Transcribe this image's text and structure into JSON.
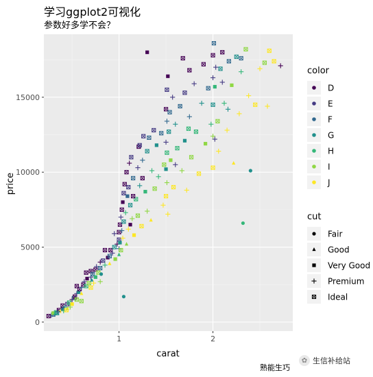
{
  "chart_data": {
    "type": "scatter",
    "title": "学习ggplot2可视化",
    "subtitle": "参数好多学不会？",
    "caption": "熟能生巧",
    "xlabel": "carat",
    "ylabel": "price",
    "xlim": [
      0.2,
      2.85
    ],
    "ylim": [
      -600,
      19200
    ],
    "xticks": [
      1,
      2
    ],
    "yticks": [
      0,
      5000,
      10000,
      15000
    ],
    "ytick_labels": [
      "0",
      "5000",
      "10000",
      "15000"
    ],
    "grid": true,
    "legend_position": "right",
    "legends": {
      "color": {
        "title": "color",
        "entries": [
          "D",
          "E",
          "F",
          "G",
          "H",
          "I",
          "J"
        ],
        "colors": [
          "#440154",
          "#443a83",
          "#31688e",
          "#21908c",
          "#35b779",
          "#8fd744",
          "#fde725"
        ]
      },
      "cut": {
        "title": "cut",
        "entries": [
          "Fair",
          "Good",
          "Very Good",
          "Premium",
          "Ideal"
        ],
        "shapes": [
          "circle",
          "triangle",
          "square",
          "plus",
          "square-x"
        ]
      }
    },
    "points": [
      [
        0.25,
        400,
        "D",
        "Ideal"
      ],
      [
        0.28,
        450,
        "E",
        "Premium"
      ],
      [
        0.3,
        500,
        "F",
        "Ideal"
      ],
      [
        0.3,
        600,
        "I",
        "Very Good"
      ],
      [
        0.32,
        550,
        "G",
        "Good"
      ],
      [
        0.33,
        650,
        "H",
        "Ideal"
      ],
      [
        0.35,
        700,
        "E",
        "Premium"
      ],
      [
        0.36,
        800,
        "D",
        "Ideal"
      ],
      [
        0.38,
        750,
        "J",
        "Premium"
      ],
      [
        0.4,
        900,
        "F",
        "Very Good"
      ],
      [
        0.4,
        1100,
        "D",
        "Ideal"
      ],
      [
        0.42,
        1000,
        "G",
        "Premium"
      ],
      [
        0.45,
        1200,
        "E",
        "Ideal"
      ],
      [
        0.45,
        900,
        "I",
        "Good"
      ],
      [
        0.47,
        1300,
        "H",
        "Ideal"
      ],
      [
        0.5,
        1500,
        "D",
        "Premium"
      ],
      [
        0.5,
        1200,
        "J",
        "Very Good"
      ],
      [
        0.52,
        1600,
        "F",
        "Ideal"
      ],
      [
        0.53,
        1700,
        "D",
        "Ideal"
      ],
      [
        0.55,
        1900,
        "E",
        "Premium"
      ],
      [
        0.55,
        1500,
        "I",
        "Ideal"
      ],
      [
        0.57,
        2000,
        "G",
        "Very Good"
      ],
      [
        0.58,
        2200,
        "D",
        "Ideal"
      ],
      [
        0.6,
        2300,
        "F",
        "Premium"
      ],
      [
        0.6,
        1900,
        "J",
        "Good"
      ],
      [
        0.62,
        2500,
        "D",
        "Ideal"
      ],
      [
        0.63,
        2700,
        "E",
        "Premium"
      ],
      [
        0.65,
        2400,
        "H",
        "Ideal"
      ],
      [
        0.66,
        2900,
        "D",
        "Very Good"
      ],
      [
        0.68,
        2600,
        "I",
        "Ideal"
      ],
      [
        0.7,
        3000,
        "E",
        "Premium"
      ],
      [
        0.7,
        3400,
        "D",
        "Ideal"
      ],
      [
        0.71,
        2800,
        "G",
        "Good"
      ],
      [
        0.72,
        3200,
        "F",
        "Ideal"
      ],
      [
        0.73,
        2600,
        "J",
        "Premium"
      ],
      [
        0.75,
        3500,
        "D",
        "Ideal"
      ],
      [
        0.75,
        3000,
        "H",
        "Very Good"
      ],
      [
        0.76,
        3700,
        "E",
        "Premium"
      ],
      [
        0.78,
        3300,
        "I",
        "Ideal"
      ],
      [
        0.8,
        3600,
        "F",
        "Ideal"
      ],
      [
        0.8,
        4000,
        "D",
        "Premium"
      ],
      [
        0.81,
        3200,
        "G",
        "Fair"
      ],
      [
        0.83,
        4100,
        "E",
        "Ideal"
      ],
      [
        0.85,
        3800,
        "H",
        "Premium"
      ],
      [
        0.88,
        4300,
        "D",
        "Very Good"
      ],
      [
        0.9,
        4400,
        "F",
        "Ideal"
      ],
      [
        0.9,
        3900,
        "J",
        "Good"
      ],
      [
        0.91,
        4800,
        "D",
        "Ideal"
      ],
      [
        0.93,
        4600,
        "E",
        "Premium"
      ],
      [
        0.95,
        5000,
        "G",
        "Ideal"
      ],
      [
        0.96,
        4200,
        "I",
        "Very Good"
      ],
      [
        0.98,
        5200,
        "D",
        "Premium"
      ],
      [
        1.0,
        5500,
        "E",
        "Ideal"
      ],
      [
        1.0,
        4900,
        "F",
        "Premium"
      ],
      [
        1.0,
        6000,
        "D",
        "Ideal"
      ],
      [
        1.0,
        4500,
        "H",
        "Good"
      ],
      [
        1.01,
        6500,
        "D",
        "Ideal"
      ],
      [
        1.01,
        5300,
        "G",
        "Very Good"
      ],
      [
        1.02,
        7000,
        "E",
        "Premium"
      ],
      [
        1.02,
        4800,
        "I",
        "Ideal"
      ],
      [
        1.03,
        7500,
        "D",
        "Ideal"
      ],
      [
        1.03,
        6100,
        "F",
        "Premium"
      ],
      [
        1.04,
        8000,
        "D",
        "Very Good"
      ],
      [
        1.04,
        5600,
        "J",
        "Premium"
      ],
      [
        1.05,
        8600,
        "E",
        "Ideal"
      ],
      [
        1.05,
        6700,
        "G",
        "Ideal"
      ],
      [
        1.06,
        9200,
        "D",
        "Ideal"
      ],
      [
        1.07,
        7300,
        "H",
        "Premium"
      ],
      [
        1.08,
        10000,
        "D",
        "Ideal"
      ],
      [
        1.08,
        5200,
        "I",
        "Good"
      ],
      [
        1.09,
        8400,
        "F",
        "Very Good"
      ],
      [
        1.1,
        9000,
        "E",
        "Ideal"
      ],
      [
        1.1,
        6200,
        "J",
        "Premium"
      ],
      [
        1.11,
        10600,
        "D",
        "Premium"
      ],
      [
        1.12,
        7800,
        "G",
        "Ideal"
      ],
      [
        1.13,
        11000,
        "E",
        "Ideal"
      ],
      [
        1.14,
        6900,
        "I",
        "Premium"
      ],
      [
        1.15,
        9600,
        "F",
        "Ideal"
      ],
      [
        1.16,
        5800,
        "J",
        "Very Good"
      ],
      [
        1.18,
        8200,
        "H",
        "Ideal"
      ],
      [
        1.2,
        10300,
        "E",
        "Premium"
      ],
      [
        1.2,
        7100,
        "I",
        "Ideal"
      ],
      [
        1.21,
        11700,
        "D",
        "Ideal"
      ],
      [
        1.22,
        9100,
        "G",
        "Premium"
      ],
      [
        1.24,
        6400,
        "J",
        "Ideal"
      ],
      [
        1.25,
        10800,
        "F",
        "Premium"
      ],
      [
        1.26,
        12400,
        "E",
        "Ideal"
      ],
      [
        1.28,
        8700,
        "H",
        "Very Good"
      ],
      [
        1.3,
        11400,
        "G",
        "Ideal"
      ],
      [
        1.3,
        7400,
        "I",
        "Premium"
      ],
      [
        1.32,
        12300,
        "F",
        "Ideal"
      ],
      [
        1.34,
        6800,
        "J",
        "Good"
      ],
      [
        1.35,
        10100,
        "H",
        "Premium"
      ],
      [
        1.37,
        12800,
        "E",
        "Ideal"
      ],
      [
        1.38,
        8900,
        "I",
        "Ideal"
      ],
      [
        1.4,
        11800,
        "G",
        "Very Good"
      ],
      [
        1.42,
        9700,
        "H",
        "Premium"
      ],
      [
        1.45,
        12600,
        "F",
        "Ideal"
      ],
      [
        1.47,
        7800,
        "J",
        "Premium"
      ],
      [
        1.48,
        10500,
        "I",
        "Ideal"
      ],
      [
        1.5,
        14200,
        "D",
        "Ideal"
      ],
      [
        1.5,
        12000,
        "E",
        "Premium"
      ],
      [
        1.5,
        10200,
        "G",
        "Very Good"
      ],
      [
        1.5,
        8400,
        "J",
        "Ideal"
      ],
      [
        1.51,
        15500,
        "E",
        "Ideal"
      ],
      [
        1.51,
        13400,
        "F",
        "Premium"
      ],
      [
        1.51,
        11300,
        "H",
        "Ideal"
      ],
      [
        1.51,
        9300,
        "I",
        "Premium"
      ],
      [
        1.52,
        16400,
        "D",
        "Very Good"
      ],
      [
        1.52,
        7200,
        "J",
        "Premium"
      ],
      [
        1.53,
        12700,
        "G",
        "Ideal"
      ],
      [
        1.54,
        14000,
        "F",
        "Ideal"
      ],
      [
        1.55,
        10800,
        "I",
        "Very Good"
      ],
      [
        1.57,
        15000,
        "E",
        "Premium"
      ],
      [
        1.58,
        9000,
        "J",
        "Ideal"
      ],
      [
        1.6,
        13200,
        "G",
        "Premium"
      ],
      [
        1.62,
        11600,
        "H",
        "Ideal"
      ],
      [
        1.65,
        14400,
        "F",
        "Ideal"
      ],
      [
        1.67,
        10100,
        "I",
        "Premium"
      ],
      [
        1.7,
        15300,
        "E",
        "Ideal"
      ],
      [
        1.7,
        12100,
        "G",
        "Very Good"
      ],
      [
        1.72,
        8800,
        "J",
        "Premium"
      ],
      [
        1.75,
        16800,
        "D",
        "Ideal"
      ],
      [
        1.75,
        13700,
        "F",
        "Premium"
      ],
      [
        1.77,
        11000,
        "I",
        "Ideal"
      ],
      [
        1.8,
        15900,
        "E",
        "Premium"
      ],
      [
        1.82,
        12700,
        "H",
        "Ideal"
      ],
      [
        1.85,
        9900,
        "J",
        "Ideal"
      ],
      [
        1.88,
        14600,
        "G",
        "Premium"
      ],
      [
        1.9,
        17200,
        "D",
        "Ideal"
      ],
      [
        1.92,
        11900,
        "I",
        "Very Good"
      ],
      [
        1.95,
        15600,
        "F",
        "Ideal"
      ],
      [
        1.98,
        13200,
        "H",
        "Premium"
      ],
      [
        2.0,
        17800,
        "D",
        "Ideal"
      ],
      [
        2.0,
        16300,
        "E",
        "Premium"
      ],
      [
        2.0,
        14500,
        "G",
        "Ideal"
      ],
      [
        2.0,
        12400,
        "I",
        "Premium"
      ],
      [
        2.0,
        10300,
        "J",
        "Ideal"
      ],
      [
        2.01,
        18600,
        "F",
        "Ideal"
      ],
      [
        2.02,
        15700,
        "H",
        "Very Good"
      ],
      [
        2.03,
        17000,
        "E",
        "Premium"
      ],
      [
        2.05,
        13400,
        "I",
        "Ideal"
      ],
      [
        2.06,
        11400,
        "J",
        "Premium"
      ],
      [
        2.08,
        16900,
        "G",
        "Ideal"
      ],
      [
        2.1,
        18000,
        "D",
        "Ideal"
      ],
      [
        2.12,
        14600,
        "H",
        "Premium"
      ],
      [
        2.15,
        12800,
        "J",
        "Premium"
      ],
      [
        2.17,
        17400,
        "F",
        "Ideal"
      ],
      [
        2.2,
        15800,
        "I",
        "Very Good"
      ],
      [
        2.22,
        10600,
        "J",
        "Good"
      ],
      [
        2.25,
        17700,
        "G",
        "Ideal"
      ],
      [
        2.28,
        13900,
        "J",
        "Premium"
      ],
      [
        2.3,
        16700,
        "H",
        "Premium"
      ],
      [
        2.32,
        6600,
        "H",
        "Fair"
      ],
      [
        2.35,
        18200,
        "I",
        "Ideal"
      ],
      [
        2.38,
        15100,
        "J",
        "Premium"
      ],
      [
        2.4,
        10100,
        "G",
        "Fair"
      ],
      [
        2.45,
        14500,
        "J",
        "Ideal"
      ],
      [
        2.5,
        16900,
        "J",
        "Premium"
      ],
      [
        2.55,
        17300,
        "I",
        "Ideal"
      ],
      [
        2.58,
        14400,
        "J",
        "Premium"
      ],
      [
        2.6,
        18100,
        "J",
        "Ideal"
      ],
      [
        2.65,
        17400,
        "J",
        "Ideal"
      ],
      [
        2.72,
        17100,
        "D",
        "Premium"
      ],
      [
        2.3,
        17600,
        "F",
        "Ideal"
      ],
      [
        1.3,
        18000,
        "D",
        "Very Good"
      ],
      [
        1.68,
        17600,
        "D",
        "Ideal"
      ],
      [
        2.1,
        16000,
        "E",
        "Premium"
      ],
      [
        0.55,
        2400,
        "D",
        "Ideal"
      ],
      [
        0.65,
        3300,
        "D",
        "Ideal"
      ],
      [
        0.85,
        4800,
        "D",
        "Ideal"
      ],
      [
        1.15,
        8400,
        "D",
        "Ideal"
      ],
      [
        1.25,
        9600,
        "D",
        "Ideal"
      ],
      [
        0.95,
        5900,
        "E",
        "Premium"
      ],
      [
        1.12,
        6500,
        "D",
        "Very Good"
      ],
      [
        0.8,
        2700,
        "I",
        "Premium"
      ],
      [
        0.7,
        2300,
        "J",
        "Ideal"
      ],
      [
        0.6,
        1400,
        "I",
        "Ideal"
      ],
      [
        1.05,
        1700,
        "G",
        "Fair"
      ],
      [
        1.22,
        11800,
        "E",
        "Ideal"
      ],
      [
        0.34,
        600,
        "G",
        "Ideal"
      ],
      [
        0.41,
        750,
        "H",
        "Premium"
      ],
      [
        0.44,
        800,
        "J",
        "Ideal"
      ],
      [
        0.48,
        1000,
        "I",
        "Premium"
      ],
      [
        1.6,
        10500,
        "E",
        "Premium"
      ],
      [
        1.74,
        12900,
        "H",
        "Ideal"
      ],
      [
        2.02,
        12200,
        "E",
        "Premium"
      ],
      [
        2.16,
        14200,
        "G",
        "Premium"
      ]
    ]
  }
}
